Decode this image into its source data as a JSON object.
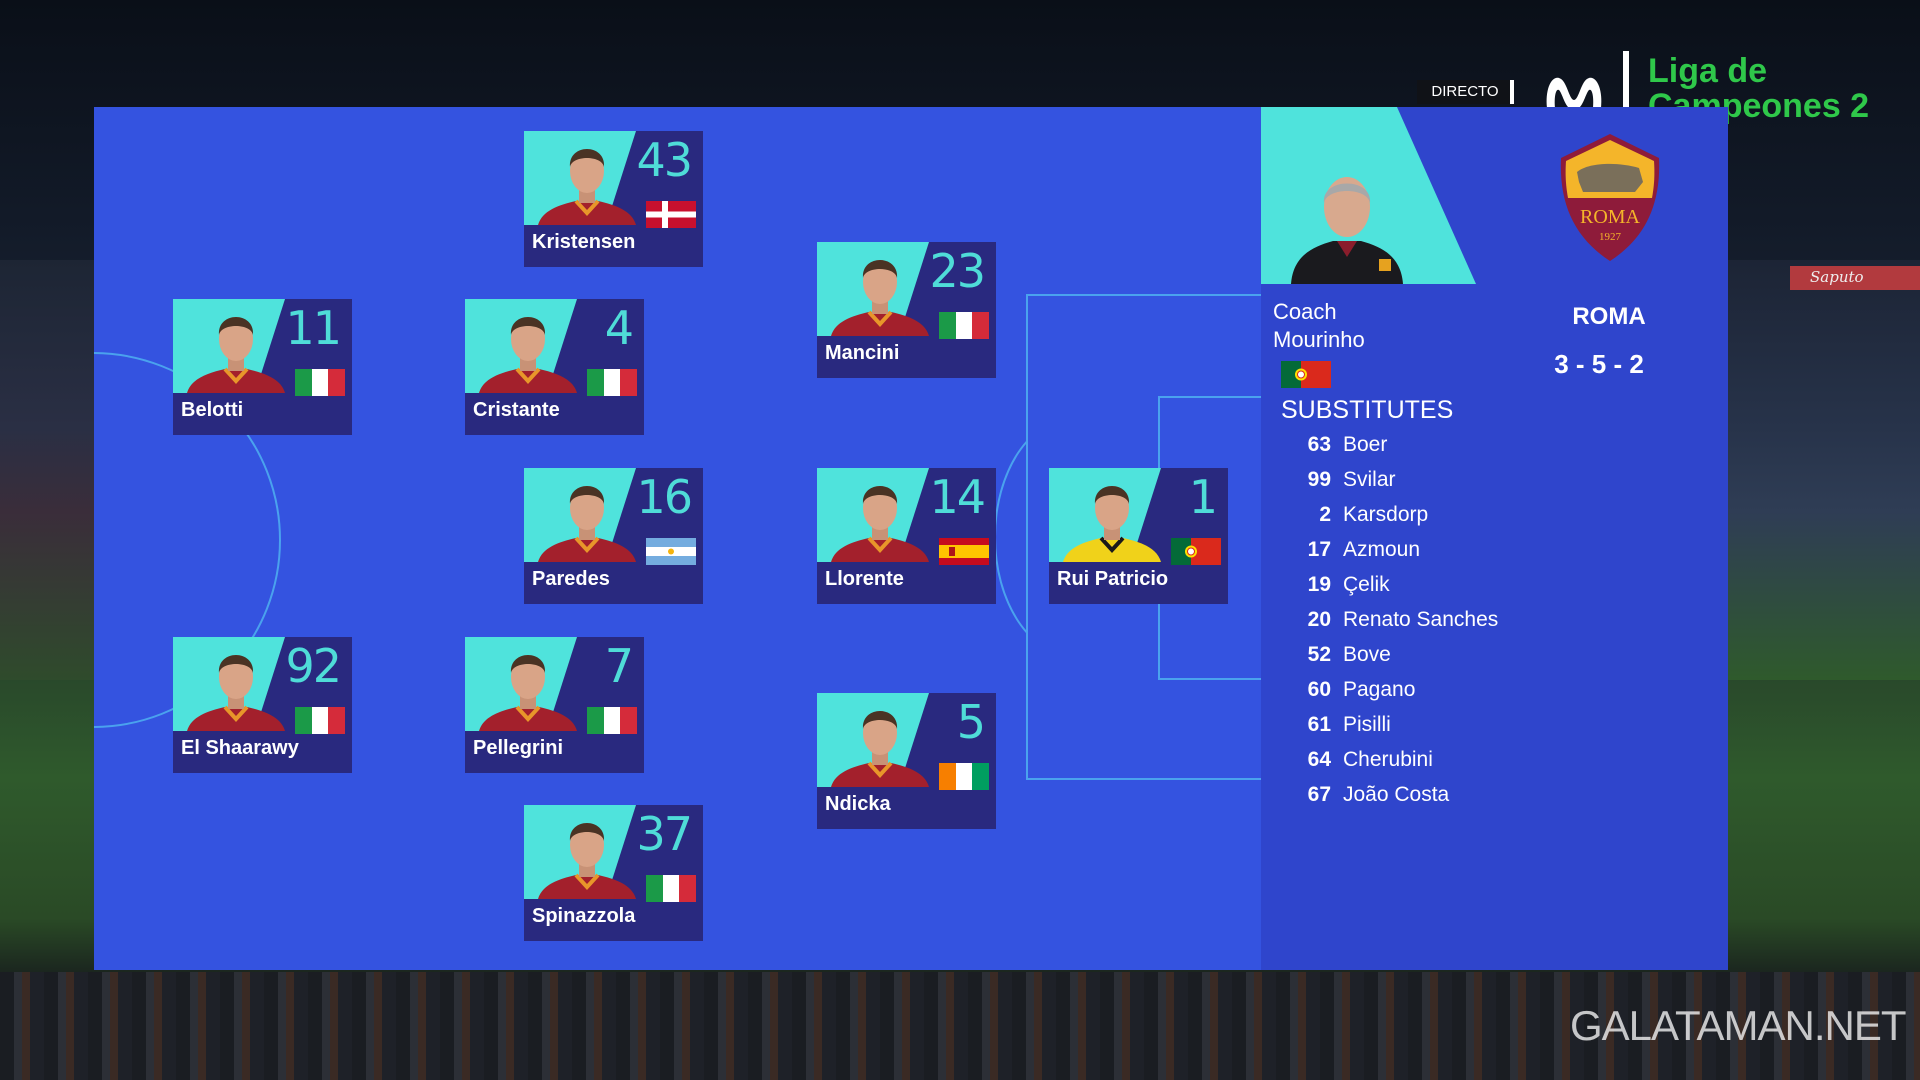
{
  "broadcast": {
    "live_label": "DIRECTO",
    "channel_logo": "movistar-m-logo",
    "channel_name_line1": "Liga de",
    "channel_name_line2": "Campeones 2",
    "watermark": "GALATAMAN.NET"
  },
  "colors": {
    "panel": "#3453e0",
    "card": "#29297f",
    "accent": "#4fdcd8",
    "channel": "#2fc84a"
  },
  "team": {
    "name": "ROMA",
    "formation": "3 - 5 - 2",
    "crest": {
      "name": "ROMA",
      "year": "1927"
    },
    "coach_label": "Coach",
    "coach_name": "Mourinho",
    "coach_flag": "PT"
  },
  "lineup": [
    {
      "number": "43",
      "name": "Kristensen",
      "flag": "DK",
      "kit": "red"
    },
    {
      "number": "11",
      "name": "Belotti",
      "flag": "IT",
      "kit": "red"
    },
    {
      "number": "4",
      "name": "Cristante",
      "flag": "IT",
      "kit": "red"
    },
    {
      "number": "23",
      "name": "Mancini",
      "flag": "IT",
      "kit": "red"
    },
    {
      "number": "16",
      "name": "Paredes",
      "flag": "AR",
      "kit": "red"
    },
    {
      "number": "14",
      "name": "Llorente",
      "flag": "ES",
      "kit": "red"
    },
    {
      "number": "1",
      "name": "Rui Patricio",
      "flag": "PT",
      "kit": "yellow"
    },
    {
      "number": "92",
      "name": "El Shaarawy",
      "flag": "IT",
      "kit": "red"
    },
    {
      "number": "7",
      "name": "Pellegrini",
      "flag": "IT",
      "kit": "red"
    },
    {
      "number": "5",
      "name": "Ndicka",
      "flag": "CI",
      "kit": "red"
    },
    {
      "number": "37",
      "name": "Spinazzola",
      "flag": "IT",
      "kit": "red"
    }
  ],
  "substitutes_title": "SUBSTITUTES",
  "substitutes": [
    {
      "number": "63",
      "name": "Boer"
    },
    {
      "number": "99",
      "name": "Svilar"
    },
    {
      "number": "2",
      "name": "Karsdorp"
    },
    {
      "number": "17",
      "name": "Azmoun"
    },
    {
      "number": "19",
      "name": "Çelik"
    },
    {
      "number": "20",
      "name": "Renato Sanches"
    },
    {
      "number": "52",
      "name": "Bove"
    },
    {
      "number": "60",
      "name": "Pagano"
    },
    {
      "number": "61",
      "name": "Pisilli"
    },
    {
      "number": "64",
      "name": "Cherubini"
    },
    {
      "number": "67",
      "name": "João Costa"
    }
  ]
}
